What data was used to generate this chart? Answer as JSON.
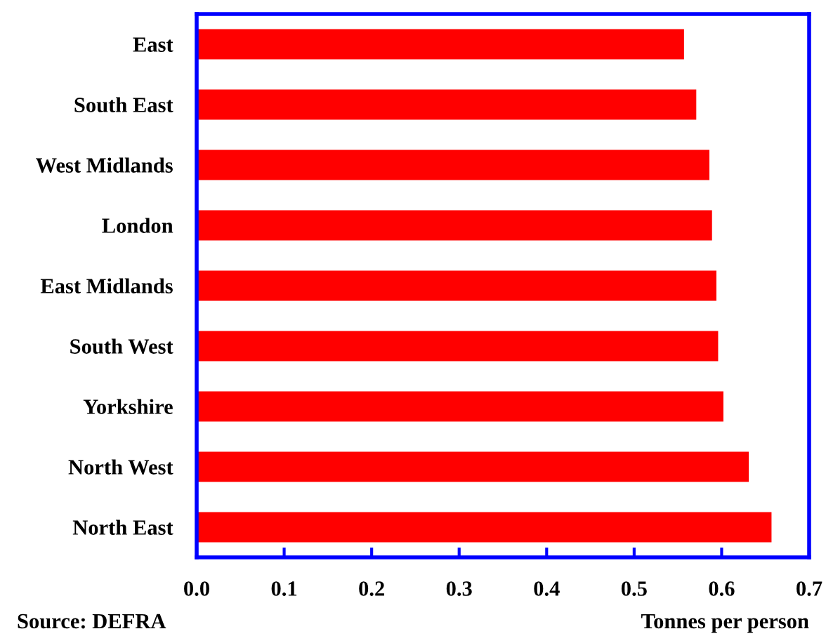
{
  "chart_data": {
    "type": "bar",
    "orientation": "horizontal",
    "categories": [
      "East",
      "South East",
      "West Midlands",
      "London",
      "East Midlands",
      "South West",
      "Yorkshire",
      "North West",
      "North East"
    ],
    "values": [
      0.557,
      0.571,
      0.586,
      0.589,
      0.594,
      0.596,
      0.602,
      0.631,
      0.657
    ],
    "color": "#ff0000",
    "xlim": [
      0,
      0.7
    ],
    "xticks": [
      {
        "value": 0,
        "label": "0.0"
      },
      0.1,
      0.2,
      0.3,
      0.4,
      0.5,
      0.6,
      0.7
    ],
    "xlabel": "Tonnes per person",
    "annotations": [
      "Source: DEFRA"
    ],
    "grid": false,
    "legend": false
  }
}
